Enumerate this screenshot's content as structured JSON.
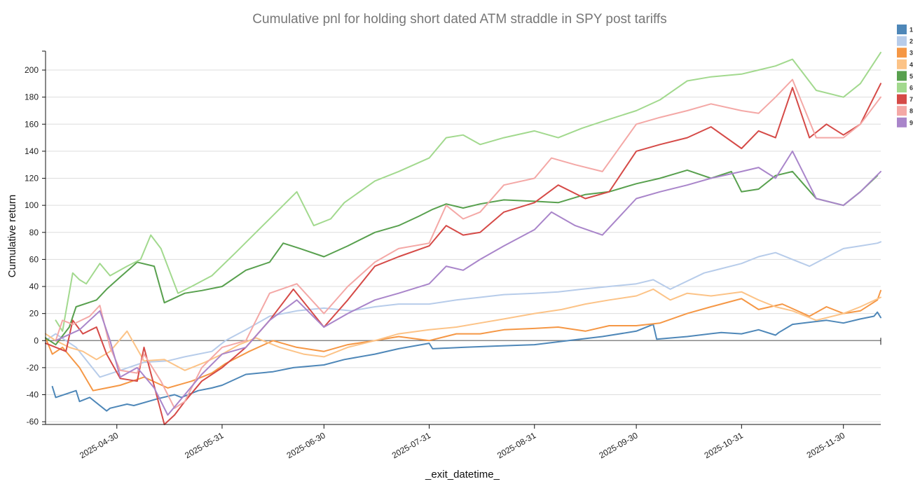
{
  "chart_data": {
    "type": "line",
    "title": "Cumulative pnl for holding short dated ATM straddle in SPY post tariffs",
    "xlabel": "_exit_datetime_",
    "ylabel": "Cumulative return",
    "ylim": [
      -62,
      214
    ],
    "yticks": [
      -60,
      -40,
      -20,
      0,
      20,
      40,
      60,
      80,
      100,
      120,
      140,
      160,
      180,
      200
    ],
    "xlim": [
      "2025-04-09",
      "2025-12-11"
    ],
    "xticks": [
      "2025-04-30",
      "2025-05-31",
      "2025-06-30",
      "2025-07-31",
      "2025-08-31",
      "2025-09-30",
      "2025-10-31",
      "2025-11-30"
    ],
    "legend_position": "top-right",
    "series": [
      {
        "name": "1",
        "color": "#4e87b8",
        "x": [
          "2025-04-11",
          "2025-04-12",
          "2025-04-18",
          "2025-04-19",
          "2025-04-22",
          "2025-04-27",
          "2025-04-28",
          "2025-05-03",
          "2025-05-05",
          "2025-05-12",
          "2025-05-17",
          "2025-05-19",
          "2025-05-24",
          "2025-05-28",
          "2025-05-31",
          "2025-06-07",
          "2025-06-15",
          "2025-06-21",
          "2025-06-30",
          "2025-07-06",
          "2025-07-15",
          "2025-07-22",
          "2025-07-31",
          "2025-08-01",
          "2025-08-10",
          "2025-08-20",
          "2025-08-31",
          "2025-09-10",
          "2025-09-20",
          "2025-09-30",
          "2025-10-05",
          "2025-10-06",
          "2025-10-15",
          "2025-10-25",
          "2025-10-31",
          "2025-11-05",
          "2025-11-10",
          "2025-11-11",
          "2025-11-15",
          "2025-11-25",
          "2025-11-30",
          "2025-12-05",
          "2025-12-09",
          "2025-12-10",
          "2025-12-11"
        ],
        "values": [
          -34,
          -42,
          -37,
          -45,
          -42,
          -52,
          -50,
          -47,
          -48,
          -43,
          -40,
          -42,
          -37,
          -35,
          -33,
          -25,
          -23,
          -20,
          -18,
          -14,
          -10,
          -6,
          -2,
          -6,
          -5,
          -4,
          -3,
          0,
          3,
          7,
          12,
          1,
          3,
          6,
          5,
          8,
          4,
          6,
          12,
          15,
          13,
          16,
          18,
          21,
          17
        ]
      },
      {
        "name": "2",
        "color": "#b7ccea",
        "x": [
          "2025-04-09",
          "2025-04-12",
          "2025-04-18",
          "2025-04-25",
          "2025-05-01",
          "2025-05-08",
          "2025-05-15",
          "2025-05-20",
          "2025-05-28",
          "2025-06-01",
          "2025-06-07",
          "2025-06-14",
          "2025-06-22",
          "2025-06-30",
          "2025-07-08",
          "2025-07-15",
          "2025-07-22",
          "2025-07-31",
          "2025-08-08",
          "2025-08-15",
          "2025-08-22",
          "2025-08-31",
          "2025-09-07",
          "2025-09-14",
          "2025-09-22",
          "2025-09-30",
          "2025-10-05",
          "2025-10-10",
          "2025-10-20",
          "2025-10-31",
          "2025-11-05",
          "2025-11-10",
          "2025-11-15",
          "2025-11-20",
          "2025-11-30",
          "2025-12-05",
          "2025-12-10",
          "2025-12-11"
        ],
        "values": [
          0,
          5,
          -5,
          -27,
          -22,
          -16,
          -15,
          -12,
          -8,
          0,
          8,
          18,
          22,
          24,
          22,
          25,
          27,
          27,
          30,
          32,
          34,
          35,
          36,
          38,
          40,
          42,
          45,
          38,
          50,
          57,
          62,
          65,
          60,
          55,
          68,
          70,
          72,
          73
        ]
      },
      {
        "name": "3",
        "color": "#f59745",
        "x": [
          "2025-04-09",
          "2025-04-11",
          "2025-04-14",
          "2025-04-19",
          "2025-04-23",
          "2025-04-27",
          "2025-05-01",
          "2025-05-08",
          "2025-05-15",
          "2025-05-22",
          "2025-05-28",
          "2025-06-01",
          "2025-06-08",
          "2025-06-15",
          "2025-06-22",
          "2025-06-30",
          "2025-07-07",
          "2025-07-15",
          "2025-07-22",
          "2025-07-31",
          "2025-08-08",
          "2025-08-15",
          "2025-08-22",
          "2025-08-31",
          "2025-09-07",
          "2025-09-15",
          "2025-09-22",
          "2025-09-30",
          "2025-10-07",
          "2025-10-15",
          "2025-10-22",
          "2025-10-31",
          "2025-11-05",
          "2025-11-12",
          "2025-11-20",
          "2025-11-25",
          "2025-11-30",
          "2025-12-05",
          "2025-12-10",
          "2025-12-11"
        ],
        "values": [
          2,
          -10,
          -5,
          -20,
          -37,
          -35,
          -33,
          -27,
          -35,
          -30,
          -24,
          -17,
          -8,
          0,
          -5,
          -8,
          -3,
          0,
          3,
          0,
          5,
          5,
          8,
          9,
          10,
          7,
          11,
          11,
          13,
          20,
          25,
          31,
          23,
          27,
          18,
          25,
          20,
          22,
          30,
          37
        ]
      },
      {
        "name": "4",
        "color": "#fcc387",
        "x": [
          "2025-04-09",
          "2025-04-12",
          "2025-04-16",
          "2025-04-20",
          "2025-04-24",
          "2025-04-28",
          "2025-05-03",
          "2025-05-08",
          "2025-05-14",
          "2025-05-20",
          "2025-05-26",
          "2025-05-31",
          "2025-06-05",
          "2025-06-10",
          "2025-06-17",
          "2025-06-24",
          "2025-06-30",
          "2025-07-07",
          "2025-07-15",
          "2025-07-22",
          "2025-07-31",
          "2025-08-08",
          "2025-08-15",
          "2025-08-22",
          "2025-08-31",
          "2025-09-08",
          "2025-09-15",
          "2025-09-22",
          "2025-09-30",
          "2025-10-05",
          "2025-10-10",
          "2025-10-15",
          "2025-10-22",
          "2025-10-31",
          "2025-11-05",
          "2025-11-10",
          "2025-11-15",
          "2025-11-22",
          "2025-11-30",
          "2025-12-05",
          "2025-12-11"
        ],
        "values": [
          5,
          0,
          -5,
          -8,
          -14,
          -8,
          7,
          -15,
          -14,
          -22,
          -16,
          -10,
          -3,
          2,
          -5,
          -10,
          -12,
          -5,
          0,
          5,
          8,
          10,
          13,
          16,
          20,
          23,
          27,
          30,
          33,
          38,
          30,
          35,
          33,
          36,
          30,
          25,
          22,
          15,
          20,
          25,
          32
        ]
      },
      {
        "name": "5",
        "color": "#58a04e",
        "x": [
          "2025-04-09",
          "2025-04-12",
          "2025-04-16",
          "2025-04-18",
          "2025-04-24",
          "2025-04-27",
          "2025-05-01",
          "2025-05-06",
          "2025-05-11",
          "2025-05-14",
          "2025-05-20",
          "2025-05-25",
          "2025-05-31",
          "2025-06-07",
          "2025-06-14",
          "2025-06-18",
          "2025-06-23",
          "2025-06-30",
          "2025-07-07",
          "2025-07-15",
          "2025-07-22",
          "2025-07-28",
          "2025-08-01",
          "2025-08-05",
          "2025-08-10",
          "2025-08-15",
          "2025-08-22",
          "2025-08-31",
          "2025-09-07",
          "2025-09-15",
          "2025-09-22",
          "2025-09-30",
          "2025-10-07",
          "2025-10-15",
          "2025-10-22",
          "2025-10-28",
          "2025-10-31",
          "2025-11-05",
          "2025-11-10",
          "2025-11-15",
          "2025-11-22",
          "2025-11-30",
          "2025-12-05",
          "2025-12-10"
        ],
        "values": [
          2,
          -3,
          10,
          25,
          30,
          38,
          47,
          58,
          55,
          28,
          35,
          37,
          40,
          52,
          58,
          72,
          68,
          62,
          70,
          80,
          85,
          92,
          97,
          101,
          98,
          101,
          104,
          103,
          102,
          108,
          110,
          116,
          120,
          126,
          120,
          125,
          110,
          112,
          122,
          125,
          105,
          100,
          110,
          122
        ]
      },
      {
        "name": "6",
        "color": "#a2d98e",
        "x": [
          "2025-04-12",
          "2025-04-14",
          "2025-04-17",
          "2025-04-19",
          "2025-04-21",
          "2025-04-25",
          "2025-04-28",
          "2025-05-03",
          "2025-05-07",
          "2025-05-10",
          "2025-05-13",
          "2025-05-18",
          "2025-05-22",
          "2025-05-28",
          "2025-06-04",
          "2025-06-12",
          "2025-06-22",
          "2025-06-27",
          "2025-07-02",
          "2025-07-06",
          "2025-07-15",
          "2025-07-22",
          "2025-07-31",
          "2025-08-05",
          "2025-08-10",
          "2025-08-15",
          "2025-08-22",
          "2025-08-31",
          "2025-09-07",
          "2025-09-14",
          "2025-09-20",
          "2025-09-30",
          "2025-10-07",
          "2025-10-15",
          "2025-10-22",
          "2025-10-31",
          "2025-11-05",
          "2025-11-10",
          "2025-11-15",
          "2025-11-22",
          "2025-11-30",
          "2025-12-05",
          "2025-12-11"
        ],
        "values": [
          15,
          7,
          50,
          45,
          42,
          57,
          48,
          55,
          60,
          78,
          68,
          35,
          40,
          48,
          65,
          85,
          110,
          85,
          90,
          102,
          118,
          125,
          135,
          150,
          152,
          145,
          150,
          155,
          150,
          157,
          162,
          170,
          178,
          192,
          195,
          197,
          200,
          203,
          208,
          185,
          180,
          190,
          213
        ]
      },
      {
        "name": "7",
        "color": "#d54a47",
        "x": [
          "2025-04-09",
          "2025-04-15",
          "2025-04-17",
          "2025-04-20",
          "2025-04-24",
          "2025-04-27",
          "2025-05-01",
          "2025-05-06",
          "2025-05-08",
          "2025-05-14",
          "2025-05-17",
          "2025-05-20",
          "2025-05-25",
          "2025-05-31",
          "2025-06-07",
          "2025-06-14",
          "2025-06-21",
          "2025-06-30",
          "2025-07-07",
          "2025-07-15",
          "2025-07-22",
          "2025-07-31",
          "2025-08-05",
          "2025-08-10",
          "2025-08-15",
          "2025-08-22",
          "2025-08-31",
          "2025-09-07",
          "2025-09-15",
          "2025-09-22",
          "2025-09-30",
          "2025-10-07",
          "2025-10-15",
          "2025-10-22",
          "2025-10-31",
          "2025-11-05",
          "2025-11-10",
          "2025-11-15",
          "2025-11-20",
          "2025-11-25",
          "2025-11-30",
          "2025-12-05",
          "2025-12-11"
        ],
        "values": [
          -2,
          -8,
          15,
          5,
          10,
          -10,
          -28,
          -30,
          -5,
          -62,
          -55,
          -45,
          -30,
          -20,
          -5,
          15,
          38,
          10,
          30,
          55,
          62,
          70,
          85,
          78,
          80,
          95,
          102,
          115,
          105,
          110,
          140,
          145,
          150,
          158,
          142,
          155,
          150,
          187,
          150,
          160,
          152,
          160,
          190
        ]
      },
      {
        "name": "8",
        "color": "#f4a8a6",
        "x": [
          "2025-04-12",
          "2025-04-14",
          "2025-04-17",
          "2025-04-22",
          "2025-04-25",
          "2025-04-28",
          "2025-05-01",
          "2025-05-06",
          "2025-05-08",
          "2025-05-13",
          "2025-05-17",
          "2025-05-20",
          "2025-05-25",
          "2025-05-31",
          "2025-06-07",
          "2025-06-14",
          "2025-06-22",
          "2025-06-30",
          "2025-07-07",
          "2025-07-15",
          "2025-07-22",
          "2025-07-31",
          "2025-08-05",
          "2025-08-10",
          "2025-08-15",
          "2025-08-22",
          "2025-08-31",
          "2025-09-05",
          "2025-09-12",
          "2025-09-20",
          "2025-09-30",
          "2025-10-07",
          "2025-10-15",
          "2025-10-22",
          "2025-10-31",
          "2025-11-05",
          "2025-11-10",
          "2025-11-15",
          "2025-11-22",
          "2025-11-30",
          "2025-12-05",
          "2025-12-11"
        ],
        "values": [
          0,
          15,
          12,
          18,
          26,
          -5,
          -22,
          -24,
          -10,
          -30,
          -50,
          -45,
          -20,
          -5,
          0,
          35,
          42,
          20,
          40,
          58,
          68,
          72,
          100,
          90,
          95,
          115,
          120,
          135,
          130,
          125,
          160,
          165,
          170,
          175,
          170,
          168,
          180,
          193,
          150,
          150,
          160,
          180
        ]
      },
      {
        "name": "9",
        "color": "#a985ca",
        "x": [
          "2025-04-12",
          "2025-04-19",
          "2025-04-25",
          "2025-04-28",
          "2025-05-01",
          "2025-05-06",
          "2025-05-11",
          "2025-05-15",
          "2025-05-20",
          "2025-05-25",
          "2025-05-31",
          "2025-06-07",
          "2025-06-14",
          "2025-06-22",
          "2025-06-30",
          "2025-07-07",
          "2025-07-15",
          "2025-07-22",
          "2025-07-31",
          "2025-08-05",
          "2025-08-10",
          "2025-08-15",
          "2025-08-22",
          "2025-08-31",
          "2025-09-05",
          "2025-09-12",
          "2025-09-20",
          "2025-09-30",
          "2025-10-07",
          "2025-10-15",
          "2025-10-22",
          "2025-10-31",
          "2025-11-05",
          "2025-11-10",
          "2025-11-15",
          "2025-11-22",
          "2025-11-30",
          "2025-12-05",
          "2025-12-11"
        ],
        "values": [
          0,
          8,
          22,
          0,
          -27,
          -20,
          -35,
          -55,
          -40,
          -25,
          -10,
          -5,
          15,
          30,
          10,
          20,
          30,
          35,
          42,
          55,
          52,
          60,
          70,
          82,
          95,
          85,
          78,
          105,
          110,
          115,
          120,
          125,
          128,
          120,
          140,
          105,
          100,
          110,
          125
        ]
      }
    ]
  }
}
